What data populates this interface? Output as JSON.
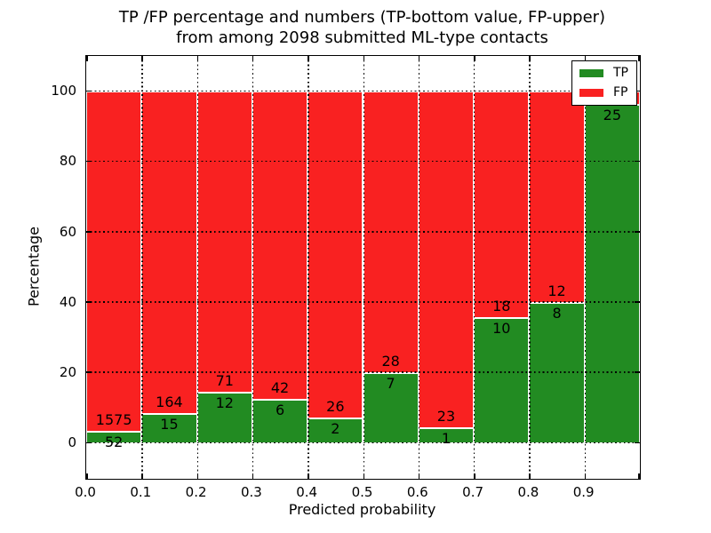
{
  "chart_data": {
    "type": "bar",
    "subtype": "stacked-percentage-histogram",
    "title_line1": "TP /FP percentage and numbers (TP-bottom value, FP-upper)",
    "title_line2": "from among 2098 submitted ML-type contacts",
    "xlabel": "Predicted probability",
    "ylabel": "Percentage",
    "x_tick_labels": [
      "0.0",
      "0.1",
      "0.2",
      "0.3",
      "0.4",
      "0.5",
      "0.6",
      "0.7",
      "0.8",
      "0.9"
    ],
    "y_tick_labels": [
      "0",
      "20",
      "40",
      "60",
      "80",
      "100"
    ],
    "y_ticks": [
      0,
      20,
      40,
      60,
      80,
      100
    ],
    "xlim": [
      0.0,
      1.0
    ],
    "ylim": [
      -10,
      110
    ],
    "grid": "dotted black gridlines drawn over bars at every tick",
    "total_contacts": 2098,
    "legend": {
      "position": "upper right",
      "entries": [
        {
          "label": "TP",
          "color": "#228b22"
        },
        {
          "label": "FP",
          "color": "#f92121"
        }
      ]
    },
    "bars": [
      {
        "bin": "0.0-0.1",
        "tp_count": 52,
        "fp_count": 1575,
        "tp_pct": 3.2
      },
      {
        "bin": "0.1-0.2",
        "tp_count": 15,
        "fp_count": 164,
        "tp_pct": 8.4
      },
      {
        "bin": "0.2-0.3",
        "tp_count": 12,
        "fp_count": 71,
        "tp_pct": 14.5
      },
      {
        "bin": "0.3-0.4",
        "tp_count": 6,
        "fp_count": 42,
        "tp_pct": 12.5
      },
      {
        "bin": "0.4-0.5",
        "tp_count": 2,
        "fp_count": 26,
        "tp_pct": 7.1
      },
      {
        "bin": "0.5-0.6",
        "tp_count": 7,
        "fp_count": 28,
        "tp_pct": 20.0
      },
      {
        "bin": "0.6-0.7",
        "tp_count": 1,
        "fp_count": 23,
        "tp_pct": 4.2
      },
      {
        "bin": "0.7-0.8",
        "tp_count": 10,
        "fp_count": 18,
        "tp_pct": 35.7
      },
      {
        "bin": "0.8-0.9",
        "tp_count": 8,
        "fp_count": 12,
        "tp_pct": 40.0
      },
      {
        "bin": "0.9-1.0",
        "tp_count": 25,
        "fp_count": null,
        "tp_pct": 96.2
      }
    ],
    "note": "FP count label of the 0.9-1.0 bin is hidden behind the legend box",
    "colors": {
      "tp": "#228b22",
      "fp": "#f92121",
      "grid": "#000000",
      "frame": "#000000",
      "background": "#ffffff"
    }
  }
}
